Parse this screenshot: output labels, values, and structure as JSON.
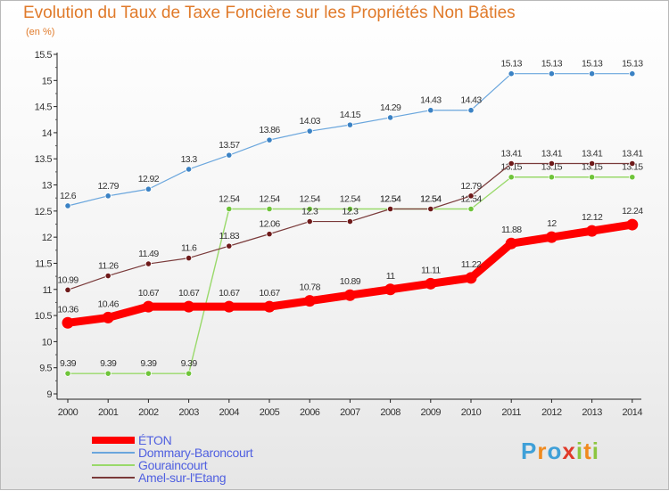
{
  "chart_data": {
    "type": "line",
    "title": "Evolution du Taux de Taxe Foncière sur les Propriétés Non Bâties",
    "unit_label": "(en %)",
    "x": [
      "2000",
      "2001",
      "2002",
      "2003",
      "2004",
      "2005",
      "2006",
      "2007",
      "2008",
      "2009",
      "2010",
      "2011",
      "2012",
      "2013",
      "2014"
    ],
    "yticks": [
      "9",
      "9.5",
      "10",
      "10.5",
      "11",
      "11.5",
      "12",
      "12.5",
      "13",
      "13.5",
      "14",
      "14.5",
      "15",
      "15.5"
    ],
    "ylim": [
      9,
      15.5
    ],
    "grid": false,
    "legend_position": "bottom-left",
    "series": [
      {
        "name": "Dommary-Baroncourt",
        "color": "#6aa6dd",
        "marker": "#3b82c4",
        "width": 1.2,
        "values": [
          12.6,
          12.79,
          12.92,
          13.3,
          13.57,
          13.86,
          14.03,
          14.15,
          14.29,
          14.43,
          14.43,
          15.13,
          15.13,
          15.13,
          15.13
        ],
        "labels": [
          "12.6",
          "12.79",
          "12.92",
          "13.3",
          "13.57",
          "13.86",
          "14.03",
          "14.15",
          "14.29",
          "14.43",
          "14.43",
          "15.13",
          "15.13",
          "15.13",
          "15.13"
        ]
      },
      {
        "name": "Gouraincourt",
        "color": "#99d96a",
        "marker": "#6fc43a",
        "width": 1.4,
        "values": [
          9.39,
          9.39,
          9.39,
          9.39,
          12.54,
          12.54,
          12.54,
          12.54,
          12.54,
          12.54,
          12.54,
          13.15,
          13.15,
          13.15,
          13.15
        ],
        "labels": [
          "9.39",
          "9.39",
          "9.39",
          "9.39",
          "12.54",
          "12.54",
          "12.54",
          "12.54",
          "12.54",
          "12.54",
          "12.54",
          "13.15",
          "13.15",
          "13.15",
          "13.15"
        ]
      },
      {
        "name": "Amel-sur-l'Etang",
        "color": "#7a3a3a",
        "marker": "#6e1a1a",
        "width": 1.2,
        "values": [
          10.99,
          11.26,
          11.49,
          11.6,
          11.83,
          12.06,
          12.3,
          12.3,
          12.54,
          12.54,
          12.79,
          13.41,
          13.41,
          13.41,
          13.41
        ],
        "labels": [
          "10.99",
          "11.26",
          "11.49",
          "11.6",
          "11.83",
          "12.06",
          "12.3",
          "12.3",
          "12.54",
          "12.54",
          "12.79",
          "13.41",
          "13.41",
          "13.41",
          "13.41"
        ]
      },
      {
        "name": "ÉTON",
        "color": "#ff0000",
        "marker": "#ff0000",
        "width": 9,
        "values": [
          10.36,
          10.46,
          10.67,
          10.67,
          10.67,
          10.67,
          10.78,
          10.89,
          11,
          11.11,
          11.22,
          11.88,
          12,
          12.12,
          12.24
        ],
        "labels": [
          "10.36",
          "10.46",
          "10.67",
          "10.67",
          "10.67",
          "10.67",
          "10.78",
          "10.89",
          "11",
          "11.11",
          "11.22",
          "11.88",
          "12",
          "12.12",
          "12.24"
        ]
      }
    ]
  },
  "legend": [
    {
      "name": "ÉTON",
      "color": "#ff0000"
    },
    {
      "name": "Dommary-Baroncourt",
      "color": "#6aa6dd"
    },
    {
      "name": "Gouraincourt",
      "color": "#99d96a"
    },
    {
      "name": "Amel-sur-l'Etang",
      "color": "#7a3a3a"
    }
  ],
  "logo": {
    "letters": [
      "P",
      "r",
      "o",
      "x",
      "i",
      "t",
      "i"
    ],
    "colors": [
      "#3fa0d8",
      "#f08a1e",
      "#3fa0d8",
      "#e03a2a",
      "#8cc63f",
      "#f08a1e",
      "#8cc63f"
    ]
  }
}
